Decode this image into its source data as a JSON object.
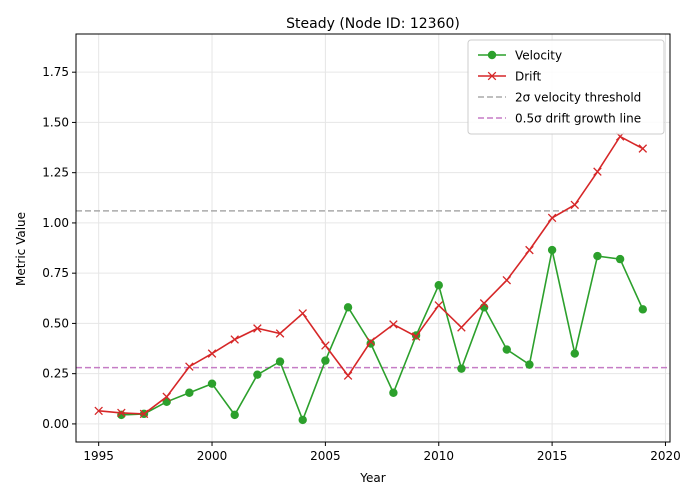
{
  "chart_data": {
    "type": "line",
    "title": "Steady (Node ID: 12360)",
    "xlabel": "Year",
    "ylabel": "Metric Value",
    "xlim": [
      1994,
      2020.2
    ],
    "ylim": [
      -0.09,
      1.94
    ],
    "xticks": [
      1995,
      2000,
      2005,
      2010,
      2015,
      2020
    ],
    "yticks": [
      0.0,
      0.25,
      0.5,
      0.75,
      1.0,
      1.25,
      1.5,
      1.75
    ],
    "ytick_labels": [
      "0.00",
      "0.25",
      "0.50",
      "0.75",
      "1.00",
      "1.25",
      "1.50",
      "1.75"
    ],
    "grid": true,
    "legend_position": "top-right",
    "series": [
      {
        "name": "Velocity",
        "color": "#2ca02c",
        "marker": "circle",
        "x": [
          1996,
          1997,
          1998,
          1999,
          2000,
          2001,
          2002,
          2003,
          2004,
          2005,
          2006,
          2007,
          2008,
          2009,
          2010,
          2011,
          2012,
          2013,
          2014,
          2015,
          2016,
          2017,
          2018,
          2019
        ],
        "y": [
          0.045,
          0.05,
          0.11,
          0.155,
          0.2,
          0.045,
          0.245,
          0.31,
          0.02,
          0.315,
          0.58,
          0.4,
          0.155,
          0.44,
          0.69,
          0.275,
          0.58,
          0.37,
          0.295,
          0.865,
          0.35,
          0.835,
          0.82,
          0.57
        ]
      },
      {
        "name": "Drift",
        "color": "#d62728",
        "marker": "x",
        "x": [
          1995,
          1996,
          1997,
          1998,
          1999,
          2000,
          2001,
          2002,
          2003,
          2004,
          2005,
          2006,
          2007,
          2008,
          2009,
          2010,
          2011,
          2012,
          2013,
          2014,
          2015,
          2016,
          2017,
          2018,
          2019
        ],
        "y": [
          0.065,
          0.055,
          0.05,
          0.135,
          0.285,
          0.35,
          0.42,
          0.475,
          0.45,
          0.55,
          0.39,
          0.24,
          0.41,
          0.495,
          0.435,
          0.59,
          0.48,
          0.6,
          0.715,
          0.865,
          1.025,
          1.09,
          1.255,
          1.43,
          1.37
        ]
      }
    ],
    "reference_lines": [
      {
        "name": "2σ velocity threshold",
        "y": 1.06,
        "color": "#aaaaaa",
        "style": "dashed"
      },
      {
        "name": "0.5σ drift growth line",
        "y": 0.28,
        "color": "#c57cc5",
        "style": "dashed"
      }
    ]
  }
}
